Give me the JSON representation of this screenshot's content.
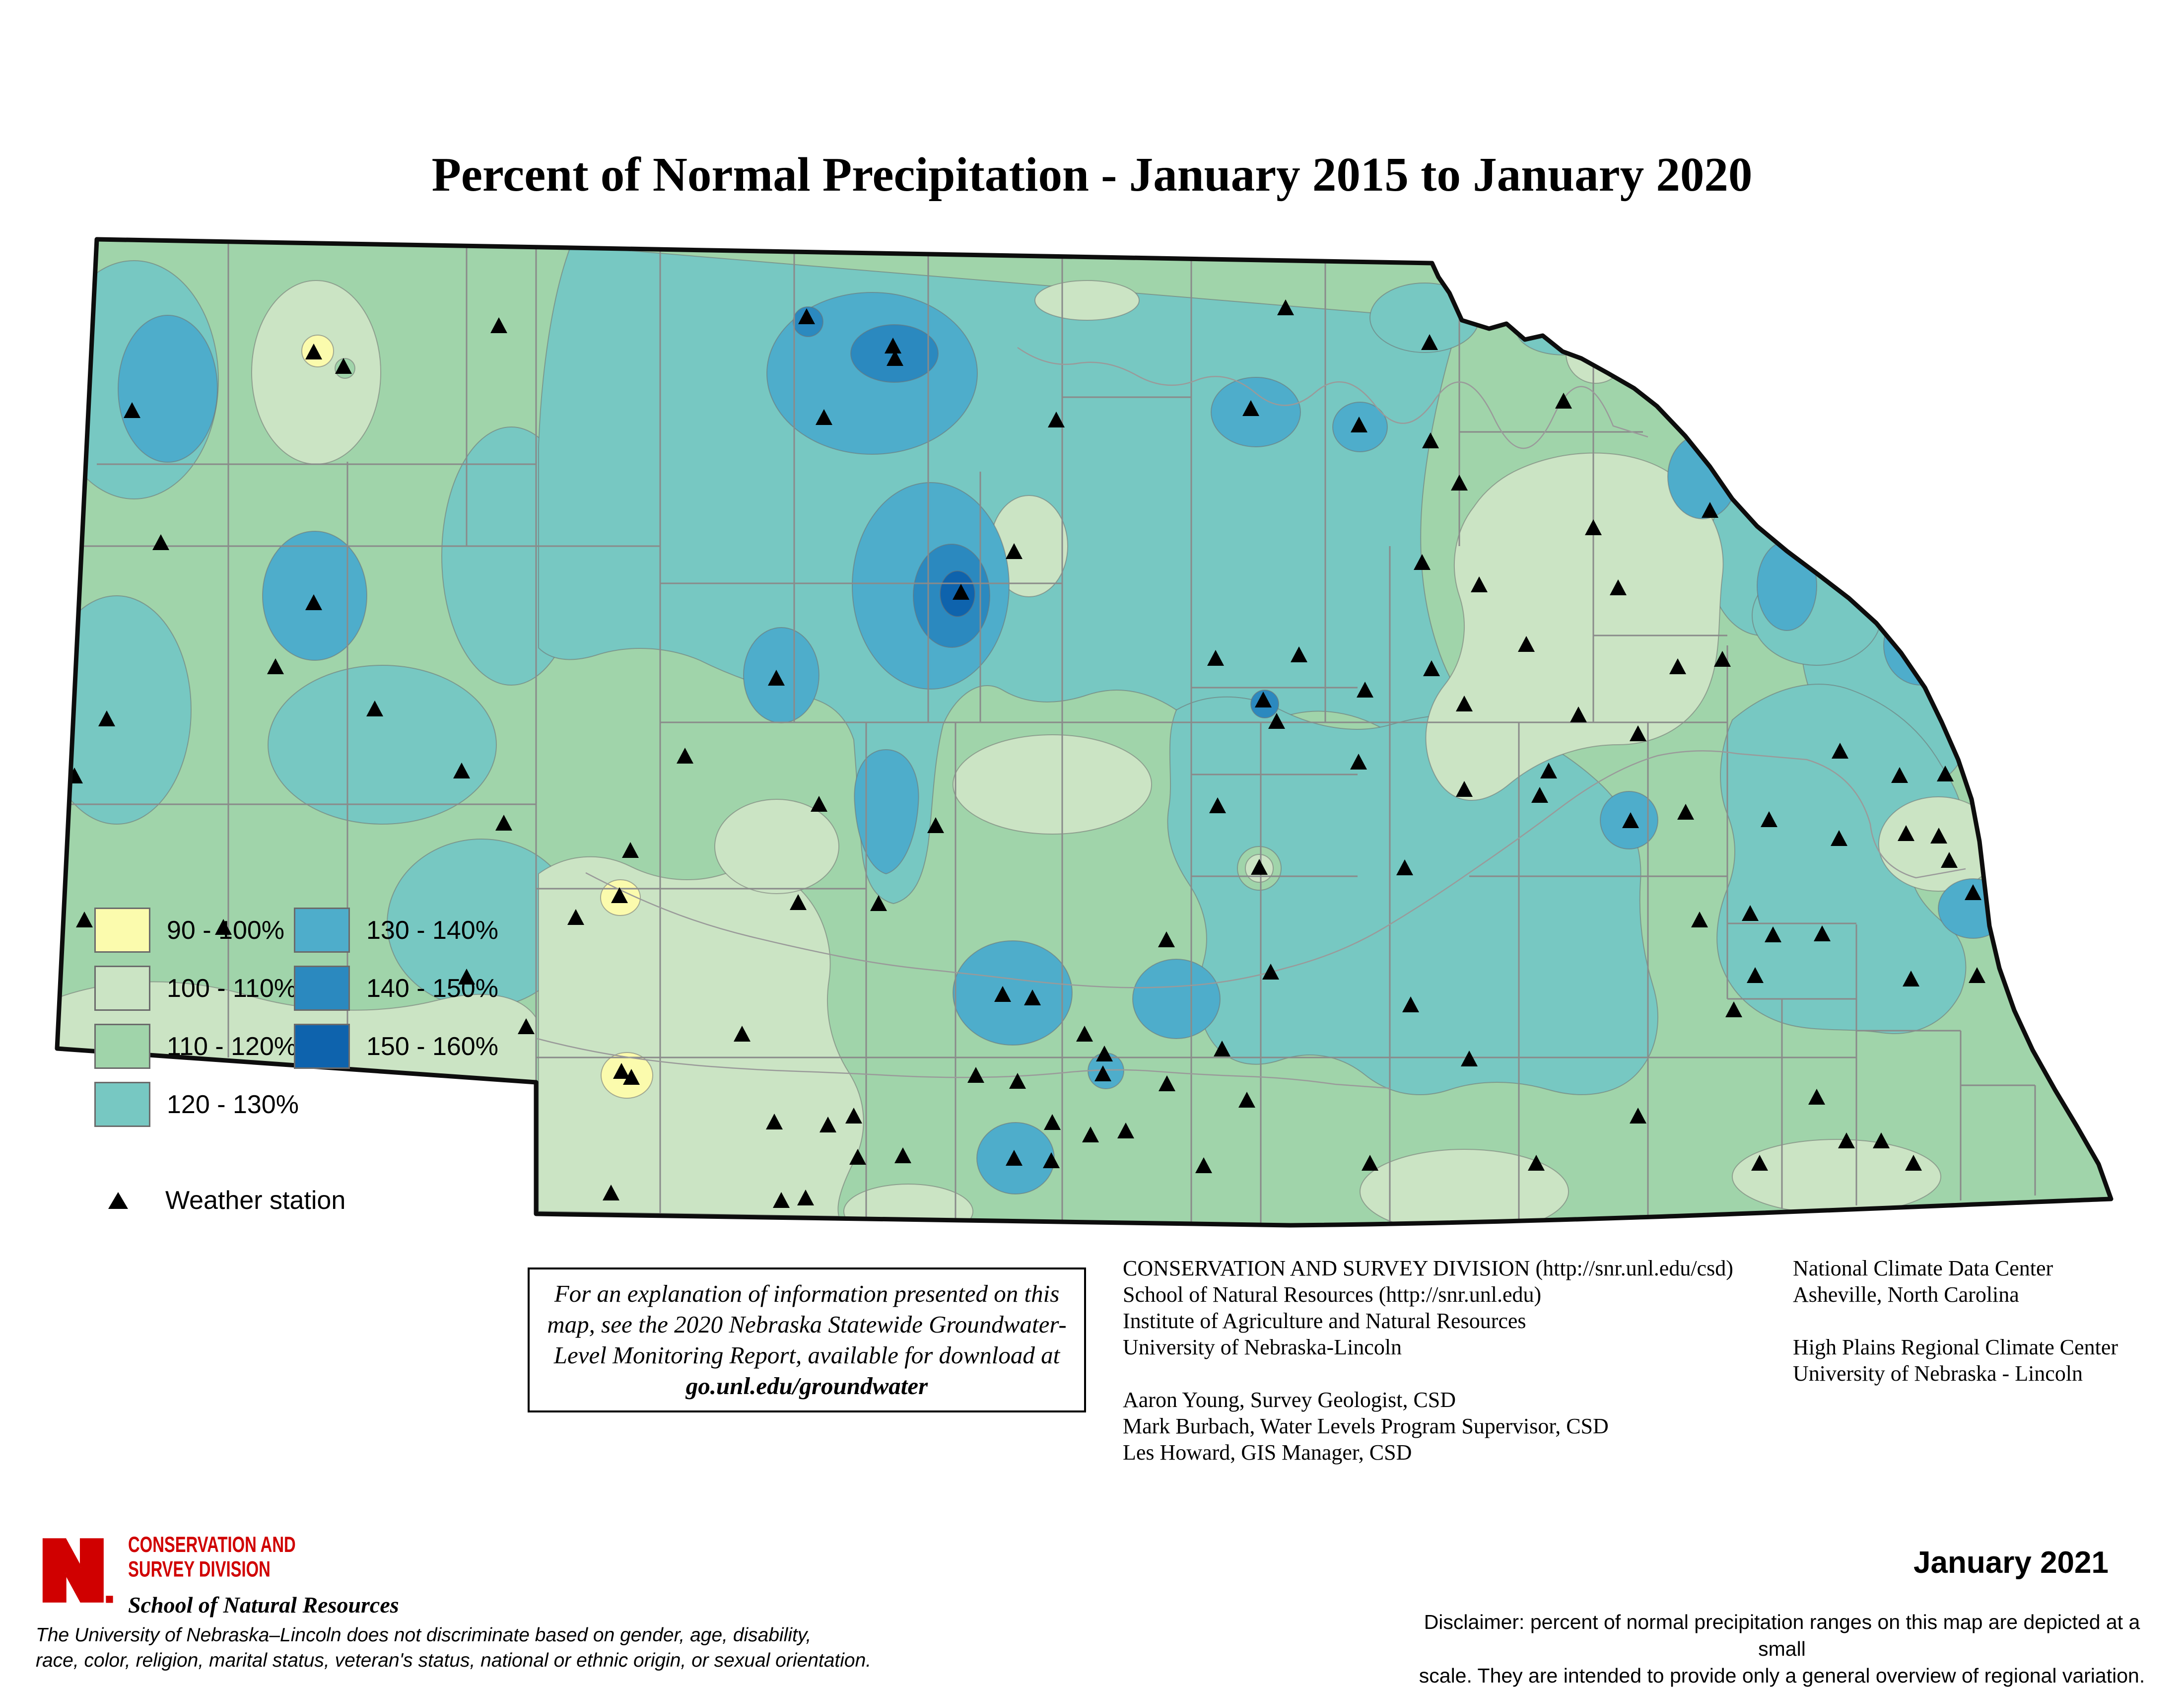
{
  "title": "Percent of Normal Precipitation - January 2015 to January 2020",
  "legend": {
    "items": [
      {
        "label": "90 - 100%",
        "color": "#FBFBAD"
      },
      {
        "label": "100 - 110%",
        "color": "#CBE4C4"
      },
      {
        "label": "110 - 120%",
        "color": "#A0D4AA"
      },
      {
        "label": "120 - 130%",
        "color": "#77C8C2"
      },
      {
        "label": "130 - 140%",
        "color": "#4EADCB"
      },
      {
        "label": "140 - 150%",
        "color": "#2B89BF"
      },
      {
        "label": "150 - 160%",
        "color": "#0E63AD"
      }
    ],
    "station_label": "Weather station"
  },
  "info_box": {
    "line1": "For an explanation of information presented on this",
    "line2": "map, see the 2020 Nebraska Statewide Groundwater-",
    "line3": "Level Monitoring Report, available for download at",
    "link": "go.unl.edu/groundwater"
  },
  "credits": {
    "org": [
      "CONSERVATION AND SURVEY DIVISION (http://snr.unl.edu/csd)",
      "School of Natural Resources (http://snr.unl.edu)",
      "Institute of Agriculture and Natural Resources",
      "University of Nebraska-Lincoln"
    ],
    "people": [
      "Aaron Young, Survey Geologist, CSD",
      "Mark Burbach, Water Levels Program Supervisor, CSD",
      "Les Howard, GIS Manager, CSD"
    ],
    "right1": [
      "National Climate Data Center",
      "Asheville, North Carolina"
    ],
    "right2": [
      "High Plains Regional Climate Center",
      "University of Nebraska - Lincoln"
    ]
  },
  "logo": {
    "division_line1": "CONSERVATION AND",
    "division_line2": "SURVEY DIVISION",
    "school": "School of Natural Resources",
    "brand_color": "#D00000"
  },
  "footer": {
    "nondiscrimination_line1": "The University of Nebraska–Lincoln does not discriminate based on gender, age, disability,",
    "nondiscrimination_line2": "race, color, religion, marital status, veteran's status, national or ethnic origin, or sexual orientation.",
    "date": "January 2021",
    "disclaimer_line1": "Disclaimer: percent of normal precipitation ranges on this map are depicted at a small",
    "disclaimer_line2": "scale.  They are intended to provide only a general overview of regional variation."
  },
  "map": {
    "stations": [
      [
        266,
        829
      ],
      [
        632,
        711
      ],
      [
        692,
        740
      ],
      [
        1005,
        658
      ],
      [
        632,
        1216
      ],
      [
        324,
        1095
      ],
      [
        150,
        1565
      ],
      [
        215,
        1450
      ],
      [
        555,
        1345
      ],
      [
        755,
        1430
      ],
      [
        930,
        1555
      ],
      [
        1015,
        1660
      ],
      [
        170,
        1855
      ],
      [
        450,
        1870
      ],
      [
        940,
        1970
      ],
      [
        1060,
        2070
      ],
      [
        1625,
        640
      ],
      [
        1799,
        699
      ],
      [
        1803,
        724
      ],
      [
        1660,
        843
      ],
      [
        2128,
        848
      ],
      [
        2520,
        825
      ],
      [
        2738,
        858
      ],
      [
        2590,
        622
      ],
      [
        2043,
        1113
      ],
      [
        1936,
        1195
      ],
      [
        1564,
        1368
      ],
      [
        2449,
        1328
      ],
      [
        2617,
        1321
      ],
      [
        2884,
        1349
      ],
      [
        2880,
        692
      ],
      [
        3214,
        712
      ],
      [
        3150,
        810
      ],
      [
        2882,
        890
      ],
      [
        2940,
        975
      ],
      [
        3445,
        1030
      ],
      [
        3210,
        1065
      ],
      [
        2980,
        1180
      ],
      [
        3260,
        1186
      ],
      [
        3075,
        1300
      ],
      [
        3380,
        1345
      ],
      [
        3470,
        1330
      ],
      [
        2865,
        1135
      ],
      [
        2950,
        1420
      ],
      [
        3180,
        1442
      ],
      [
        3120,
        1555
      ],
      [
        3300,
        1480
      ],
      [
        1380,
        1525
      ],
      [
        1650,
        1622
      ],
      [
        1770,
        1822
      ],
      [
        2545,
        1412
      ],
      [
        2572,
        1455
      ],
      [
        2453,
        1625
      ],
      [
        2537,
        1749
      ],
      [
        2737,
        1537
      ],
      [
        2950,
        1592
      ],
      [
        3102,
        1604
      ],
      [
        2750,
        1392
      ],
      [
        2830,
        1750
      ],
      [
        3285,
        1655
      ],
      [
        1270,
        1715
      ],
      [
        1160,
        1850
      ],
      [
        1608,
        1820
      ],
      [
        1495,
        2085
      ],
      [
        1720,
        2250
      ],
      [
        1668,
        2268
      ],
      [
        1885,
        1665
      ],
      [
        2080,
        2012
      ],
      [
        2020,
        2005
      ],
      [
        2185,
        2085
      ],
      [
        2222,
        2165
      ],
      [
        2050,
        2180
      ],
      [
        2118,
        2340
      ],
      [
        2268,
        2280
      ],
      [
        2425,
        2350
      ],
      [
        2350,
        1895
      ],
      [
        2462,
        2115
      ],
      [
        1248,
        1806
      ],
      [
        1252,
        2160
      ],
      [
        1272,
        2172
      ],
      [
        2043,
        2335
      ],
      [
        1231,
        2405
      ],
      [
        1574,
        2420
      ],
      [
        1560,
        2262
      ],
      [
        1623,
        2415
      ],
      [
        1728,
        2333
      ],
      [
        1819,
        2330
      ],
      [
        2120,
        2263
      ],
      [
        2197,
        2288
      ],
      [
        1966,
        2168
      ],
      [
        2225,
        2125
      ],
      [
        2351,
        2185
      ],
      [
        2560,
        1960
      ],
      [
        2842,
        2026
      ],
      [
        2512,
        2218
      ],
      [
        2760,
        2345
      ],
      [
        3095,
        2345
      ],
      [
        3300,
        2250
      ],
      [
        2960,
        2135
      ],
      [
        3396,
        1638
      ],
      [
        3424,
        1855
      ],
      [
        3526,
        1842
      ],
      [
        3572,
        1885
      ],
      [
        3671,
        1883
      ],
      [
        3536,
        1967
      ],
      [
        3493,
        2036
      ],
      [
        3850,
        1974
      ],
      [
        3983,
        1967
      ],
      [
        3707,
        1515
      ],
      [
        3564,
        1653
      ],
      [
        3705,
        1691
      ],
      [
        3840,
        1681
      ],
      [
        3906,
        1686
      ],
      [
        3827,
        1564
      ],
      [
        3919,
        1561
      ],
      [
        3927,
        1735
      ],
      [
        3975,
        1800
      ],
      [
        3660,
        2212
      ],
      [
        3720,
        2300
      ],
      [
        3790,
        2300
      ],
      [
        3855,
        2345
      ],
      [
        3545,
        2345
      ]
    ]
  }
}
